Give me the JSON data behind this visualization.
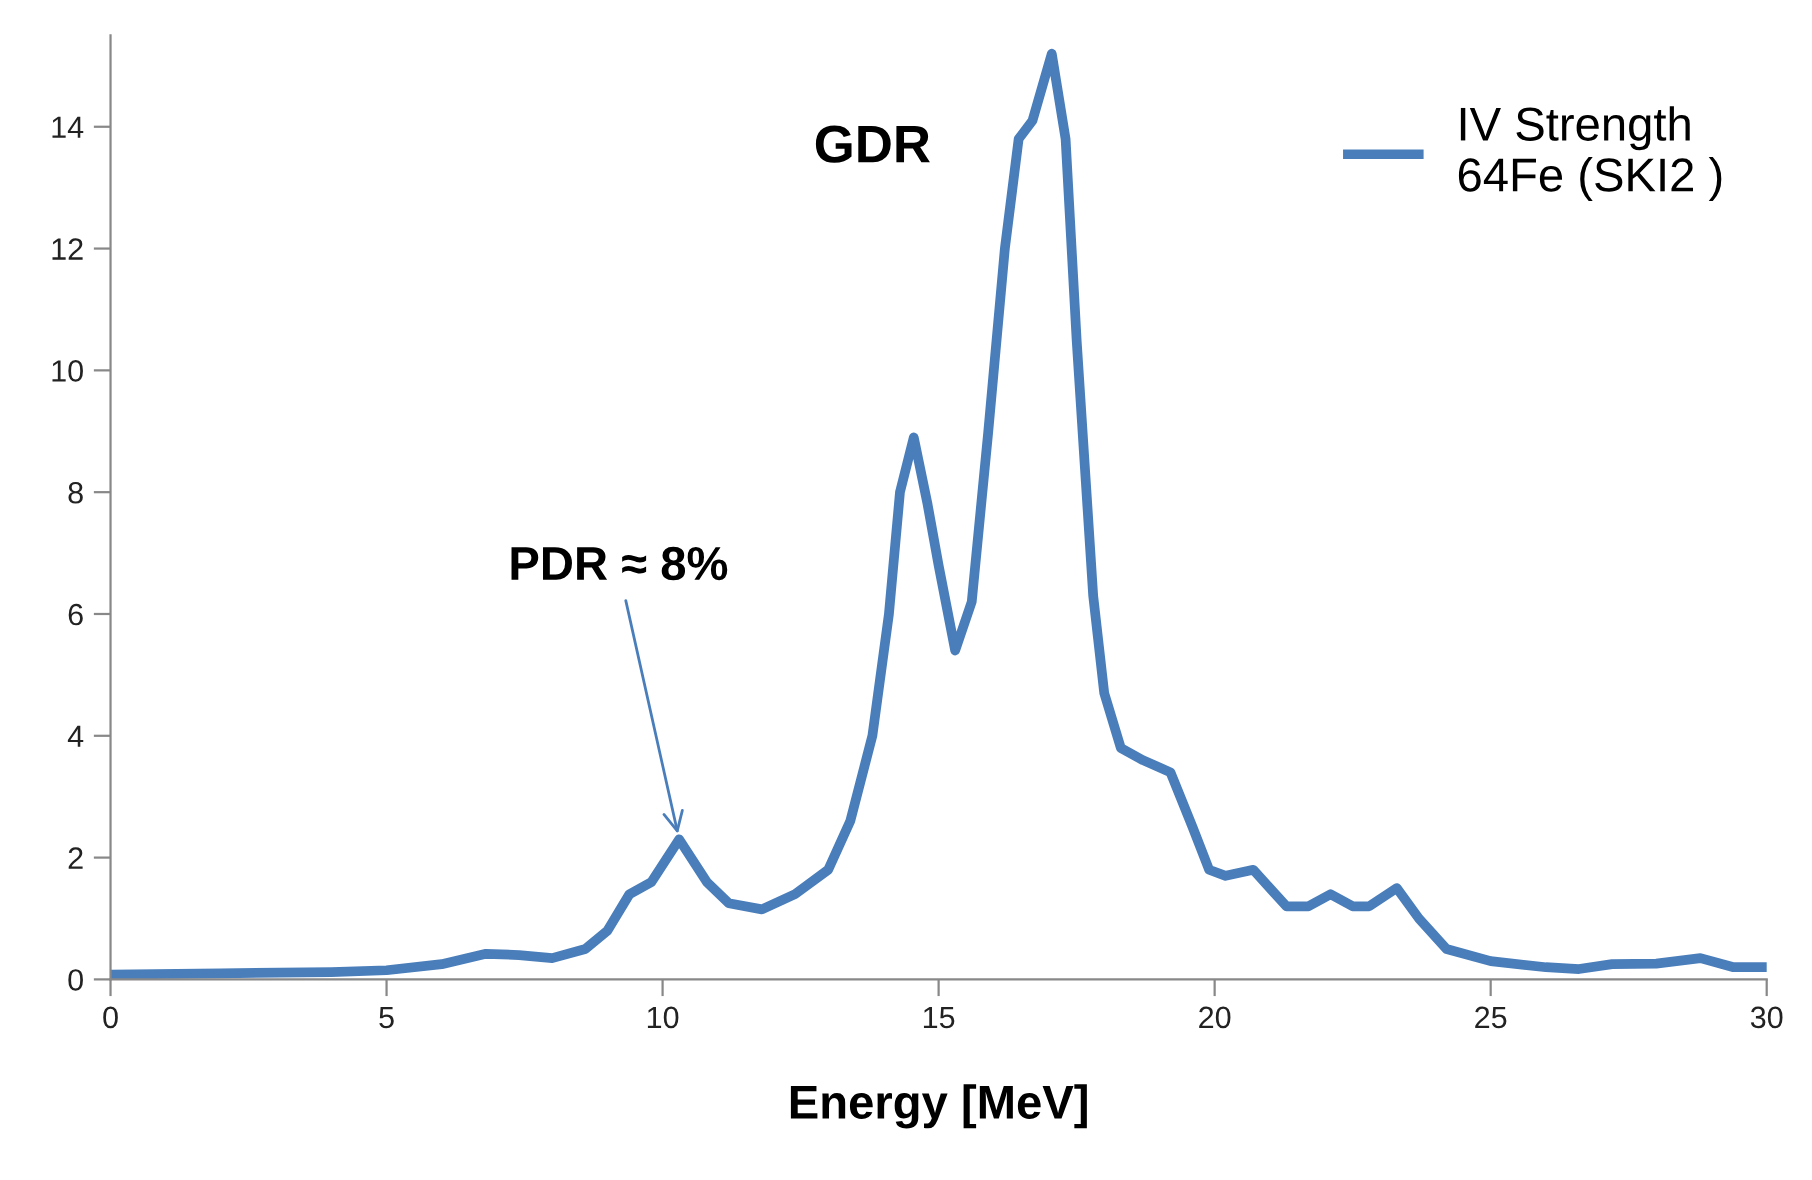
{
  "chart_data": {
    "type": "line",
    "xlabel": "Energy [MeV]",
    "xlim": [
      0,
      30
    ],
    "xticks": [
      0,
      5,
      10,
      15,
      20,
      25,
      30
    ],
    "ylim": [
      0,
      15.5
    ],
    "yticks": [
      0,
      2,
      4,
      6,
      8,
      10,
      12,
      14
    ],
    "grid": false,
    "legend": "top right",
    "marker": "none",
    "line_style": "solid",
    "annotations": [
      {
        "text": "GDR"
      },
      {
        "text": "PDR ≈ 8%",
        "x": 10.3,
        "y": 2.3
      }
    ],
    "series": [
      {
        "name": "IV Strength\n64Fe (SKI2 )",
        "color": "#4a7ebb",
        "x": [
          0,
          2,
          4,
          5,
          6,
          6.8,
          7.4,
          8,
          8.6,
          9,
          9.4,
          9.8,
          10.3,
          10.8,
          11.2,
          11.8,
          12.4,
          13,
          13.4,
          13.8,
          14.1,
          14.3,
          14.55,
          14.8,
          15,
          15.3,
          15.6,
          15.9,
          16.2,
          16.45,
          16.7,
          17.05,
          17.3,
          17.5,
          17.8,
          18,
          18.3,
          18.7,
          19.2,
          19.6,
          19.9,
          20.2,
          20.7,
          21.3,
          21.7,
          22.1,
          22.5,
          22.8,
          23.3,
          23.7,
          24.2,
          25,
          26,
          26.6,
          27.2,
          28,
          28.8,
          29.4,
          30
        ],
        "values": [
          0.08,
          0.1,
          0.12,
          0.15,
          0.25,
          0.42,
          0.4,
          0.35,
          0.5,
          0.8,
          1.4,
          1.6,
          2.3,
          1.6,
          1.25,
          1.15,
          1.4,
          1.8,
          2.6,
          4,
          6,
          8,
          8.9,
          7.8,
          6.8,
          5.4,
          6.2,
          9,
          12,
          13.8,
          14.1,
          15.2,
          13.8,
          10.5,
          6.3,
          4.7,
          3.8,
          3.6,
          3.4,
          2.5,
          1.8,
          1.7,
          1.8,
          1.2,
          1.2,
          1.4,
          1.2,
          1.2,
          1.5,
          1.0,
          0.5,
          0.3,
          0.2,
          0.17,
          0.25,
          0.26,
          0.35,
          0.2,
          0.2
        ]
      }
    ]
  }
}
